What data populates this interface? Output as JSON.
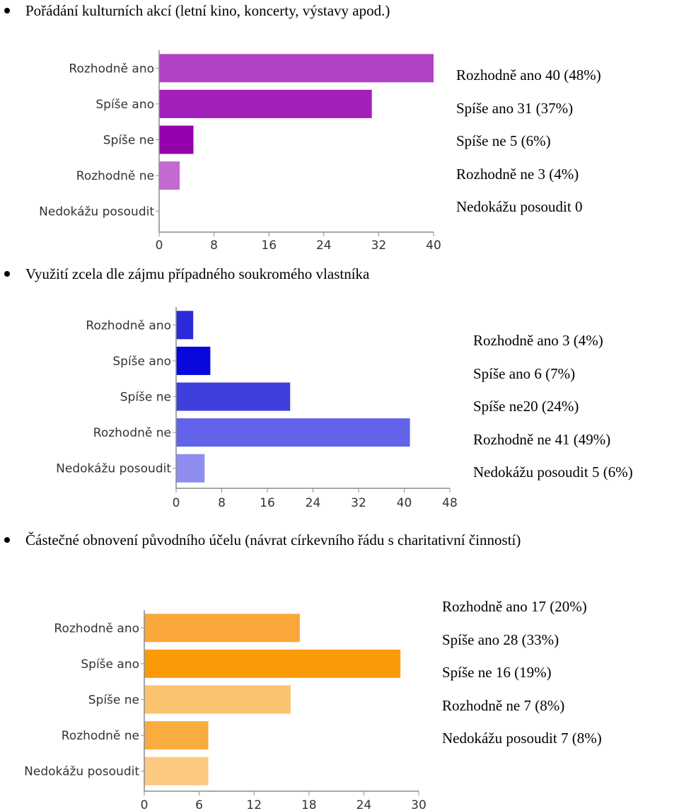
{
  "sections": [
    {
      "heading": "Pořádání kulturních akcí (letní kino, koncerty, výstavy apod.)",
      "summary": [
        "Rozhodně ano 40 (48%)",
        "Spíše ano 31 (37%)",
        "Spíše ne 5 (6%)",
        "Rozhodně ne 3 (4%)",
        "Nedokážu posoudit 0"
      ]
    },
    {
      "heading": "Využití zcela dle zájmu případného soukromého vlastníka",
      "summary": [
        "Rozhodně ano 3 (4%)",
        "Spíše ano 6 (7%)",
        "Spíše ne20 (24%)",
        "Rozhodně ne 41 (49%)",
        "Nedokážu posoudit 5 (6%)"
      ]
    },
    {
      "heading": "Částečné obnovení původního účelu (návrat církevního řádu s charitativní činností)",
      "summary": [
        "Rozhodně ano 17 (20%)",
        "Spíše ano 28 (33%)",
        "Spíše ne 16 (19%)",
        "Rozhodně ne 7 (8%)",
        "Nedokážu posoudit 7 (8%)"
      ]
    }
  ],
  "chart_data": [
    {
      "type": "bar",
      "orientation": "horizontal",
      "categories": [
        "Rozhodně ano",
        "Spíše ano",
        "Spíše ne",
        "Rozhodně ne",
        "Nedokážu posoudit"
      ],
      "values": [
        40,
        31,
        5,
        3,
        0
      ],
      "xlim": [
        0,
        40
      ],
      "xticks": [
        0,
        8,
        16,
        24,
        32,
        40
      ],
      "colors": [
        "#b043c4",
        "#a21fba",
        "#9402ad",
        "#c36ad1",
        "#d9a0e3"
      ]
    },
    {
      "type": "bar",
      "orientation": "horizontal",
      "categories": [
        "Rozhodně ano",
        "Spíše ano",
        "Spíše ne",
        "Rozhodně ne",
        "Nedokážu posoudit"
      ],
      "values": [
        3,
        6,
        20,
        41,
        5
      ],
      "xlim": [
        0,
        48
      ],
      "xticks": [
        0,
        8,
        16,
        24,
        32,
        40,
        48
      ],
      "colors": [
        "#2a2ad8",
        "#0808dd",
        "#3f3fde",
        "#6262ea",
        "#8d8df0"
      ]
    },
    {
      "type": "bar",
      "orientation": "horizontal",
      "categories": [
        "Rozhodně ano",
        "Spíše ano",
        "Spíše ne",
        "Rozhodně ne",
        "Nedokážu posoudit"
      ],
      "values": [
        17,
        28,
        16,
        7,
        7
      ],
      "xlim": [
        0,
        30
      ],
      "xticks": [
        0,
        6,
        12,
        18,
        24,
        30
      ],
      "colors": [
        "#f9a73a",
        "#fa9a07",
        "#fbc36d",
        "#f9ac3f",
        "#fcc980"
      ]
    }
  ]
}
